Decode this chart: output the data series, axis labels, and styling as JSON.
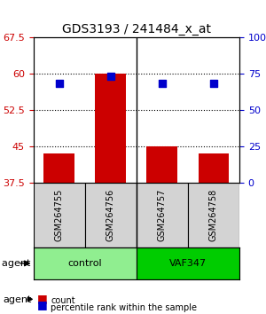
{
  "title": "GDS3193 / 241484_x_at",
  "samples": [
    "GSM264755",
    "GSM264756",
    "GSM264757",
    "GSM264758"
  ],
  "bar_bottoms": [
    37.5,
    37.5,
    37.5,
    37.5
  ],
  "bar_tops": [
    43.5,
    60.0,
    45.0,
    43.5
  ],
  "bar_color": "#cc0000",
  "dot_values": [
    58.0,
    59.5,
    58.0,
    58.0
  ],
  "dot_color": "#0000cc",
  "ylim_left": [
    37.5,
    67.5
  ],
  "ylim_right": [
    0,
    100
  ],
  "yticks_left": [
    37.5,
    45,
    52.5,
    60,
    67.5
  ],
  "yticks_right": [
    0,
    25,
    50,
    75,
    100
  ],
  "ytick_labels_right": [
    "0",
    "25",
    "50",
    "75",
    "100%"
  ],
  "hlines": [
    45,
    52.5,
    60
  ],
  "groups": [
    {
      "label": "control",
      "indices": [
        0,
        1
      ],
      "color": "#90ee90"
    },
    {
      "label": "VAF347",
      "indices": [
        2,
        3
      ],
      "color": "#00cc00"
    }
  ],
  "group_label_prefix": "agent",
  "legend_count_label": "count",
  "legend_pct_label": "percentile rank within the sample",
  "left_tick_color": "#cc0000",
  "right_tick_color": "#0000cc",
  "bar_width": 0.6,
  "dot_size": 30
}
